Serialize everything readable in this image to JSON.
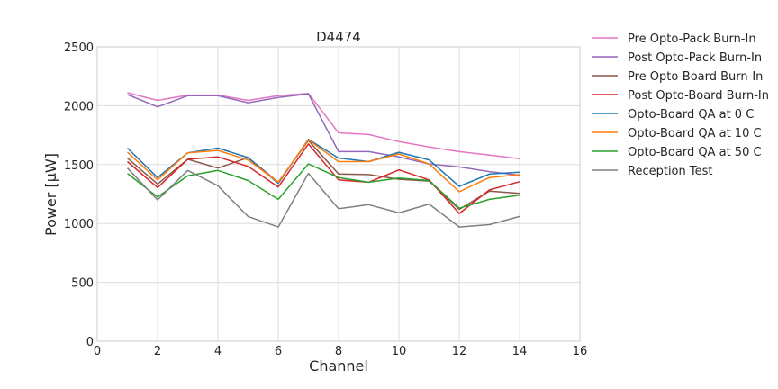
{
  "chart_data": {
    "type": "line",
    "title": "D4474",
    "xlabel": "Channel",
    "ylabel": "Power [μW]",
    "xlim": [
      0,
      16
    ],
    "ylim": [
      0,
      2500
    ],
    "xticks": [
      0,
      2,
      4,
      6,
      8,
      10,
      12,
      14,
      16
    ],
    "yticks": [
      0,
      500,
      1000,
      1500,
      2000,
      2500
    ],
    "grid": true,
    "legend_position": "outside right",
    "x": [
      1,
      2,
      3,
      4,
      5,
      6,
      7,
      8,
      9,
      10,
      11,
      12,
      13,
      14
    ],
    "series": [
      {
        "name": "Pre Opto-Pack Burn-In",
        "color": "#e377c2",
        "values": [
          2110,
          2045,
          2090,
          2090,
          2045,
          2085,
          2105,
          1770,
          1755,
          1695,
          1650,
          1610,
          1580,
          1550
        ]
      },
      {
        "name": "Post Opto-Pack Burn-In",
        "color": "#9467bd",
        "values": [
          2095,
          1990,
          2085,
          2085,
          2025,
          2070,
          2100,
          1610,
          1610,
          1565,
          1505,
          1480,
          1440,
          1410
        ]
      },
      {
        "name": "Pre Opto-Board Burn-In",
        "color": "#8c564b",
        "values": [
          1555,
          1335,
          1545,
          1470,
          1560,
          1350,
          1705,
          1420,
          1415,
          1375,
          1360,
          1120,
          1275,
          1255
        ]
      },
      {
        "name": "Post Opto-Board Burn-In",
        "color": "#d62728",
        "values": [
          1525,
          1305,
          1545,
          1565,
          1485,
          1310,
          1675,
          1370,
          1350,
          1455,
          1370,
          1085,
          1285,
          1355
        ]
      },
      {
        "name": "Opto-Board QA at 0 C",
        "color": "#1f77b4",
        "values": [
          1640,
          1390,
          1600,
          1640,
          1560,
          1340,
          1715,
          1555,
          1525,
          1605,
          1540,
          1315,
          1420,
          1435
        ]
      },
      {
        "name": "Opto-Board QA at 10 C",
        "color": "#ff7f0e",
        "values": [
          1605,
          1370,
          1600,
          1620,
          1540,
          1350,
          1710,
          1525,
          1525,
          1590,
          1505,
          1270,
          1390,
          1415
        ]
      },
      {
        "name": "Opto-Board QA at 50 C",
        "color": "#2ca02c",
        "values": [
          1425,
          1225,
          1405,
          1450,
          1365,
          1205,
          1505,
          1390,
          1350,
          1385,
          1365,
          1130,
          1205,
          1240
        ]
      },
      {
        "name": "Reception Test",
        "color": "#7f7f7f",
        "values": [
          1470,
          1200,
          1450,
          1320,
          1060,
          970,
          1425,
          1125,
          1160,
          1090,
          1165,
          970,
          990,
          1060
        ]
      }
    ]
  }
}
